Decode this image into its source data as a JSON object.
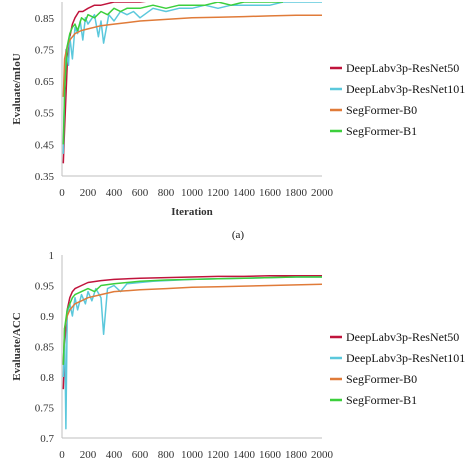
{
  "chart_data": [
    {
      "type": "line",
      "panel_label": "",
      "xlabel": "Iteration",
      "ylabel": "Evaluate/mIoU",
      "xlim": [
        0,
        2000
      ],
      "ylim": [
        0.35,
        0.9
      ],
      "x_ticks": [
        0,
        200,
        400,
        600,
        800,
        1000,
        1200,
        1400,
        1600,
        1800,
        2000
      ],
      "y_ticks": [
        0.35,
        0.45,
        0.55,
        0.65,
        0.75,
        0.85
      ],
      "y_tick_labels": [
        "0.35",
        "0.45",
        "0.55",
        "0.65",
        "0.75",
        "0.85"
      ],
      "grid": false,
      "legend_position": "right",
      "series": [
        {
          "name": "DeepLabv3p-ResNet50",
          "color": "#c0143c",
          "x": [
            10,
            20,
            40,
            60,
            80,
            100,
            130,
            160,
            200,
            250,
            300,
            400,
            500,
            600,
            800,
            1000,
            1200,
            1400,
            1600,
            1680
          ],
          "y": [
            0.39,
            0.5,
            0.7,
            0.79,
            0.83,
            0.85,
            0.87,
            0.87,
            0.88,
            0.89,
            0.89,
            0.9,
            0.9,
            0.9,
            0.91,
            0.91,
            0.91,
            0.91,
            0.91,
            0.91
          ]
        },
        {
          "name": "DeepLabv3p-ResNet101",
          "color": "#5bc8dc",
          "x": [
            10,
            20,
            30,
            50,
            60,
            80,
            100,
            120,
            140,
            160,
            180,
            200,
            250,
            280,
            300,
            320,
            360,
            400,
            450,
            500,
            550,
            600,
            700,
            800,
            900,
            1000,
            1100,
            1200,
            1300,
            1400,
            1500,
            1600,
            1700,
            1800,
            1900,
            2000
          ],
          "y": [
            0.42,
            0.62,
            0.75,
            0.7,
            0.79,
            0.72,
            0.82,
            0.8,
            0.84,
            0.78,
            0.85,
            0.83,
            0.86,
            0.79,
            0.84,
            0.77,
            0.86,
            0.84,
            0.87,
            0.86,
            0.87,
            0.85,
            0.88,
            0.87,
            0.88,
            0.88,
            0.89,
            0.88,
            0.89,
            0.89,
            0.89,
            0.89,
            0.9,
            0.9,
            0.9,
            0.9
          ]
        },
        {
          "name": "SegFormer-B0",
          "color": "#e07b39",
          "x": [
            10,
            20,
            40,
            60,
            80,
            100,
            150,
            200,
            300,
            400,
            500,
            600,
            800,
            1000,
            1200,
            1400,
            1600,
            1800,
            2000
          ],
          "y": [
            0.6,
            0.72,
            0.76,
            0.78,
            0.79,
            0.8,
            0.81,
            0.815,
            0.825,
            0.83,
            0.835,
            0.84,
            0.845,
            0.85,
            0.852,
            0.854,
            0.856,
            0.858,
            0.858
          ]
        },
        {
          "name": "SegFormer-B1",
          "color": "#3ccf3c",
          "x": [
            10,
            20,
            40,
            60,
            80,
            100,
            120,
            150,
            180,
            200,
            250,
            300,
            350,
            400,
            450,
            500,
            600,
            700,
            800,
            900,
            1000,
            1100,
            1200,
            1300,
            1400,
            1500,
            1600,
            1700
          ],
          "y": [
            0.45,
            0.62,
            0.76,
            0.8,
            0.82,
            0.83,
            0.81,
            0.85,
            0.84,
            0.86,
            0.85,
            0.87,
            0.86,
            0.88,
            0.87,
            0.88,
            0.88,
            0.89,
            0.88,
            0.89,
            0.89,
            0.89,
            0.9,
            0.89,
            0.9,
            0.9,
            0.9,
            0.9
          ]
        }
      ]
    },
    {
      "type": "line",
      "panel_label": "(a)",
      "xlabel": "",
      "ylabel": "Evaluate/ACC",
      "xlim": [
        0,
        2000
      ],
      "ylim": [
        0.7,
        1.0
      ],
      "x_ticks": [
        0,
        200,
        400,
        600,
        800,
        1000,
        1200,
        1400,
        1600,
        1800,
        2000
      ],
      "y_ticks": [
        0.7,
        0.75,
        0.8,
        0.85,
        0.9,
        0.95,
        1.0
      ],
      "y_tick_labels": [
        "0.7",
        "0.75",
        "0.8",
        "0.85",
        "0.9",
        "0.95",
        "1"
      ],
      "grid": false,
      "legend_position": "right",
      "series": [
        {
          "name": "DeepLabv3p-ResNet50",
          "color": "#c0143c",
          "x": [
            10,
            20,
            40,
            60,
            80,
            100,
            150,
            200,
            300,
            400,
            600,
            800,
            1000,
            1200,
            1400,
            1600,
            1800,
            2000
          ],
          "y": [
            0.78,
            0.85,
            0.91,
            0.93,
            0.94,
            0.945,
            0.95,
            0.955,
            0.958,
            0.96,
            0.962,
            0.963,
            0.964,
            0.965,
            0.965,
            0.966,
            0.966,
            0.966
          ]
        },
        {
          "name": "DeepLabv3p-ResNet101",
          "color": "#5bc8dc",
          "x": [
            10,
            20,
            30,
            40,
            60,
            80,
            100,
            120,
            150,
            180,
            200,
            230,
            260,
            300,
            320,
            350,
            400,
            450,
            500,
            600,
            700,
            800,
            1000,
            1200,
            1400,
            1600,
            1800,
            2000
          ],
          "y": [
            0.8,
            0.88,
            0.715,
            0.9,
            0.92,
            0.9,
            0.93,
            0.91,
            0.935,
            0.92,
            0.94,
            0.925,
            0.945,
            0.93,
            0.87,
            0.945,
            0.95,
            0.94,
            0.953,
            0.955,
            0.957,
            0.958,
            0.96,
            0.961,
            0.962,
            0.963,
            0.964,
            0.964
          ]
        },
        {
          "name": "SegFormer-B0",
          "color": "#e07b39",
          "x": [
            10,
            20,
            40,
            60,
            80,
            100,
            150,
            200,
            300,
            400,
            600,
            800,
            1000,
            1200,
            1400,
            1600,
            1800,
            2000
          ],
          "y": [
            0.82,
            0.88,
            0.9,
            0.91,
            0.915,
            0.92,
            0.925,
            0.93,
            0.935,
            0.94,
            0.943,
            0.945,
            0.947,
            0.948,
            0.949,
            0.95,
            0.951,
            0.952
          ]
        },
        {
          "name": "SegFormer-B1",
          "color": "#3ccf3c",
          "x": [
            10,
            20,
            40,
            60,
            80,
            100,
            150,
            200,
            250,
            300,
            400,
            500,
            600,
            800,
            1000,
            1200,
            1400,
            1600,
            1800,
            2000
          ],
          "y": [
            0.82,
            0.88,
            0.91,
            0.92,
            0.93,
            0.935,
            0.94,
            0.945,
            0.94,
            0.95,
            0.953,
            0.955,
            0.957,
            0.959,
            0.96,
            0.961,
            0.962,
            0.963,
            0.964,
            0.964
          ]
        }
      ]
    }
  ]
}
